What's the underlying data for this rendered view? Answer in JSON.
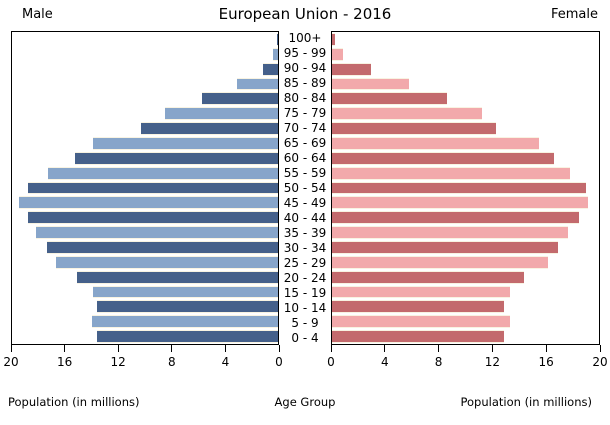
{
  "chart_data": {
    "type": "bar",
    "variant": "population-pyramid",
    "title": "European Union - 2016",
    "left_header": "Male",
    "right_header": "Female",
    "x_axis_label": "Population (in millions)",
    "center_axis_label": "Age Group",
    "xlim": [
      0,
      20
    ],
    "male_axis_ticks": [
      20,
      16,
      12,
      8,
      4,
      0
    ],
    "female_axis_ticks": [
      0,
      4,
      8,
      12,
      16,
      20
    ],
    "grid": false,
    "age_groups": [
      "100+",
      "95 - 99",
      "90 - 94",
      "85 - 89",
      "80 - 84",
      "75 - 79",
      "70 - 74",
      "65 - 69",
      "60 - 64",
      "55 - 59",
      "50 - 54",
      "45 - 49",
      "40 - 44",
      "35 - 39",
      "30 - 34",
      "25 - 29",
      "20 - 24",
      "15 - 19",
      "10 - 14",
      "5 - 9",
      "0 - 4"
    ],
    "series": [
      {
        "name": "Male",
        "values": [
          0.1,
          0.4,
          1.1,
          3.1,
          5.7,
          8.5,
          10.3,
          13.9,
          15.3,
          17.3,
          18.8,
          19.5,
          18.8,
          18.2,
          17.4,
          16.7,
          15.1,
          13.9,
          13.6,
          14.0,
          13.6
        ]
      },
      {
        "name": "Female",
        "values": [
          0.2,
          0.8,
          2.9,
          5.8,
          8.6,
          11.2,
          12.3,
          15.5,
          16.6,
          17.8,
          19.0,
          19.2,
          18.5,
          17.7,
          16.9,
          16.2,
          14.4,
          13.3,
          12.9,
          13.3,
          12.9
        ]
      }
    ],
    "colors": {
      "male_dark": "#45608a",
      "male_light": "#87a5ca",
      "female_dark": "#c36a6d",
      "female_light": "#f2a9ab",
      "bar_separator": "#f8f3e2",
      "axis": "#000000"
    }
  }
}
